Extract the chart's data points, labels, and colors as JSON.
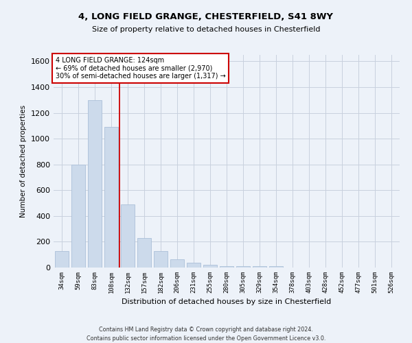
{
  "title": "4, LONG FIELD GRANGE, CHESTERFIELD, S41 8WY",
  "subtitle": "Size of property relative to detached houses in Chesterfield",
  "xlabel": "Distribution of detached houses by size in Chesterfield",
  "ylabel": "Number of detached properties",
  "categories": [
    "34sqm",
    "59sqm",
    "83sqm",
    "108sqm",
    "132sqm",
    "157sqm",
    "182sqm",
    "206sqm",
    "231sqm",
    "255sqm",
    "280sqm",
    "305sqm",
    "329sqm",
    "354sqm",
    "378sqm",
    "403sqm",
    "428sqm",
    "452sqm",
    "477sqm",
    "501sqm",
    "526sqm"
  ],
  "values": [
    130,
    800,
    1300,
    1090,
    490,
    230,
    130,
    65,
    35,
    22,
    12,
    12,
    12,
    12,
    0,
    0,
    0,
    0,
    0,
    0,
    0
  ],
  "bar_color": "#ccdaeb",
  "bar_edge_color": "#aabfd8",
  "vline_color": "#cc0000",
  "annotation_text": "4 LONG FIELD GRANGE: 124sqm\n← 69% of detached houses are smaller (2,970)\n30% of semi-detached houses are larger (1,317) →",
  "annotation_box_color": "#ffffff",
  "annotation_box_edge": "#cc0000",
  "ylim": [
    0,
    1650
  ],
  "yticks": [
    0,
    200,
    400,
    600,
    800,
    1000,
    1200,
    1400,
    1600
  ],
  "grid_color": "#c8d0de",
  "footer_line1": "Contains HM Land Registry data © Crown copyright and database right 2024.",
  "footer_line2": "Contains public sector information licensed under the Open Government Licence v3.0.",
  "background_color": "#edf2f9"
}
